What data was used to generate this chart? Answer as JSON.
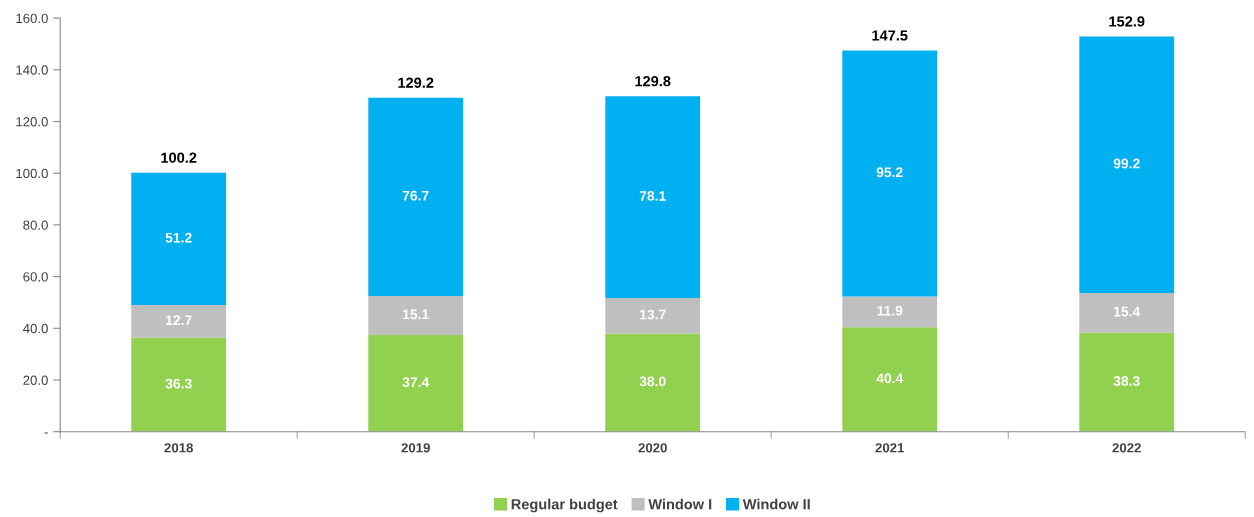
{
  "chart_data": {
    "type": "bar",
    "stacked": true,
    "categories": [
      "2018",
      "2019",
      "2020",
      "2021",
      "2022"
    ],
    "series": [
      {
        "name": "Regular budget",
        "color": "#92d050",
        "values": [
          36.3,
          37.4,
          38.0,
          40.4,
          38.3
        ],
        "value_labels": [
          "36.3",
          "37.4",
          "38.0",
          "40.4",
          "38.3"
        ]
      },
      {
        "name": "Window I",
        "color": "#bfbfbf",
        "values": [
          12.7,
          15.1,
          13.7,
          11.9,
          15.4
        ],
        "value_labels": [
          "12.7",
          "15.1",
          "13.7",
          "11.9",
          "15.4"
        ]
      },
      {
        "name": "Window II",
        "color": "#00b0f0",
        "values": [
          51.2,
          76.7,
          78.1,
          95.2,
          99.2
        ],
        "value_labels": [
          "51.2",
          "76.7",
          "78.1",
          "95.2",
          "99.2"
        ]
      }
    ],
    "totals": [
      "100.2",
      "129.2",
      "129.8",
      "147.5",
      "152.9"
    ],
    "ylim": [
      0,
      160
    ],
    "yticks": [
      {
        "value": 0,
        "label": "-"
      },
      {
        "value": 20,
        "label": "20.0"
      },
      {
        "value": 40,
        "label": "40.0"
      },
      {
        "value": 60,
        "label": "60.0"
      },
      {
        "value": 80,
        "label": "80.0"
      },
      {
        "value": 100,
        "label": "100.0"
      },
      {
        "value": 120,
        "label": "120.0"
      },
      {
        "value": 140,
        "label": "140.0"
      },
      {
        "value": 160,
        "label": "160.0"
      }
    ],
    "grid": false,
    "legend": "bottom"
  }
}
